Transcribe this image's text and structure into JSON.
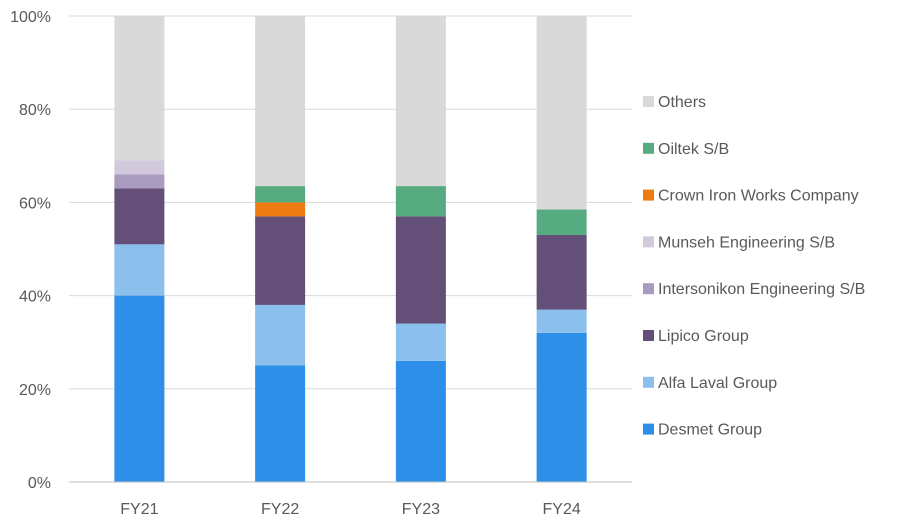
{
  "chart_data": {
    "type": "bar",
    "stacked": true,
    "categories": [
      "FY21",
      "FY22",
      "FY23",
      "FY24"
    ],
    "ylim": [
      0,
      100
    ],
    "yticks": [
      "0%",
      "20%",
      "40%",
      "60%",
      "80%",
      "100%"
    ],
    "ytick_values": [
      0,
      20,
      40,
      60,
      80,
      100
    ],
    "grid": "horizontal",
    "legend_position": "right",
    "series": [
      {
        "name": "Desmet Group",
        "color": "#2e8fe8",
        "values": [
          40,
          25,
          26,
          32
        ]
      },
      {
        "name": "Alfa Laval Group",
        "color": "#8bbfec",
        "values": [
          11,
          13,
          8,
          5
        ]
      },
      {
        "name": "Lipico Group",
        "color": "#634f78",
        "values": [
          12,
          19,
          23,
          16
        ]
      },
      {
        "name": "Intersonikon Engineering S/B",
        "color": "#a99bbd",
        "values": [
          3,
          0,
          0,
          0
        ]
      },
      {
        "name": "Munseh Engineering S/B",
        "color": "#d3c9dd",
        "values": [
          3,
          0,
          0,
          0
        ]
      },
      {
        "name": "Crown Iron Works Company",
        "color": "#ee7a12",
        "values": [
          0,
          3,
          0,
          0
        ]
      },
      {
        "name": "Oiltek S/B",
        "color": "#56ab81",
        "values": [
          0,
          3.5,
          6.5,
          5.5
        ]
      },
      {
        "name": "Others",
        "color": "#d9d9d9",
        "values": [
          31,
          36.5,
          36.5,
          41.5
        ]
      }
    ]
  }
}
